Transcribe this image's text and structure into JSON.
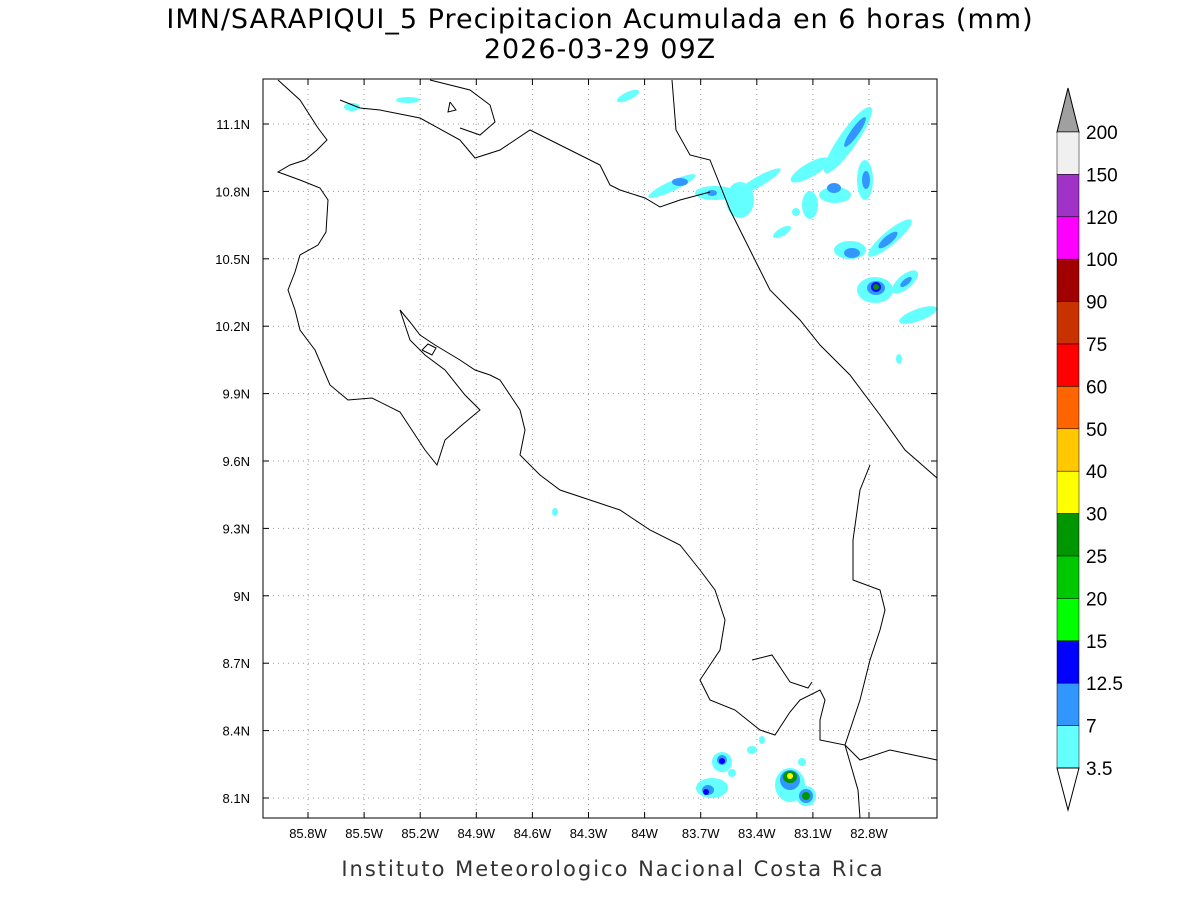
{
  "title": "IMN/SARAPIQUI_5 Precipitacion Acumulada en 6 horas (mm)",
  "subtitle": "2026-03-29 09Z",
  "credit": "Instituto Meteorologico Nacional Costa Rica",
  "map": {
    "lon_labels": [
      "85.8W",
      "85.5W",
      "85.2W",
      "84.9W",
      "84.6W",
      "84.3W",
      "84W",
      "83.7W",
      "83.4W",
      "83.1W",
      "82.8W"
    ],
    "lat_labels": [
      "11.1N",
      "10.8N",
      "10.5N",
      "10.2N",
      "9.9N",
      "9.6N",
      "9.3N",
      "9N",
      "8.7N",
      "8.4N",
      "8.1N"
    ],
    "grid": true
  },
  "colorbar": {
    "levels": [
      200,
      150,
      120,
      100,
      90,
      75,
      60,
      50,
      40,
      30,
      25,
      20,
      15,
      12.5,
      7,
      3.5
    ],
    "colors": [
      "#a0a0a0",
      "#f0f0f0",
      "#a032c8",
      "#ff00ff",
      "#a00000",
      "#c83200",
      "#ff0000",
      "#ff6400",
      "#ffc800",
      "#ffff00",
      "#009600",
      "#00c800",
      "#00ff00",
      "#0000ff",
      "#3296ff",
      "#64ffff",
      "#ffffff"
    ]
  }
}
